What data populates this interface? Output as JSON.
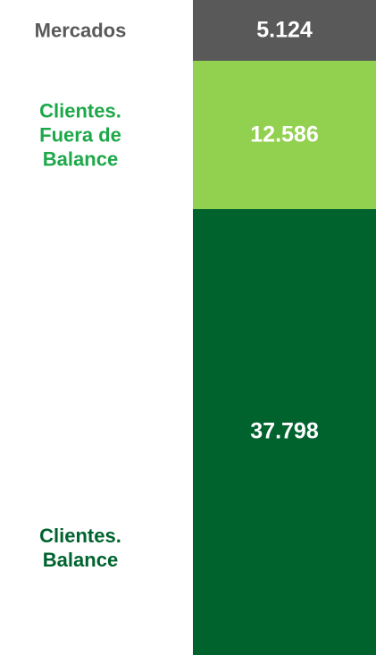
{
  "chart_data": {
    "type": "stacked-bar",
    "series": [
      {
        "name": "Clientes. Balance",
        "color": "#00632e",
        "label_color": "#00632e",
        "values": [
          37798
        ],
        "value_labels": [
          "37.798"
        ]
      },
      {
        "name": "Clientes. Fuera de Balance",
        "color": "#92d050",
        "label_color": "#1ea84a",
        "values": [
          12586
        ],
        "value_labels": [
          "12.586"
        ]
      },
      {
        "name": "Mercados",
        "color": "#595959",
        "label_color": "#595959",
        "values": [
          5124
        ],
        "value_labels": [
          "5.124"
        ]
      }
    ]
  }
}
